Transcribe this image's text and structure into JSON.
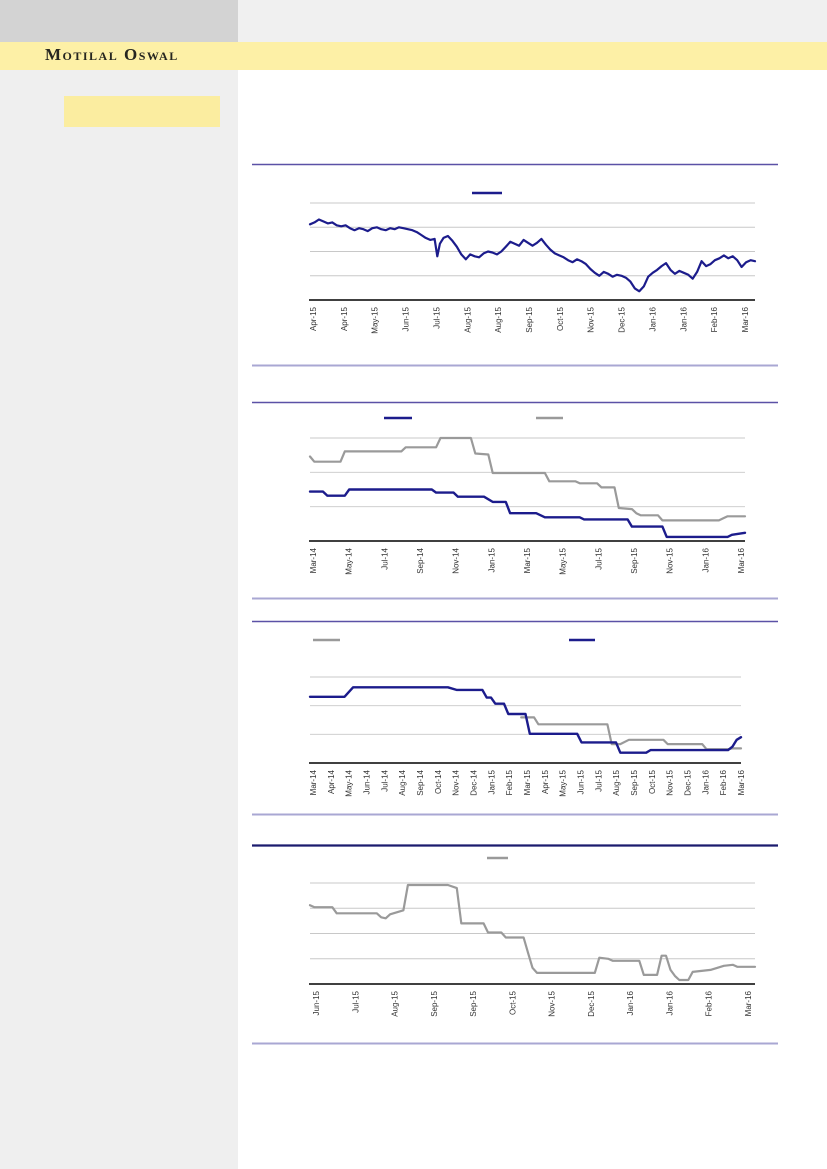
{
  "header": {
    "brand": "Motilal Oswal"
  },
  "colors": {
    "brand_band": "#fdf0a6",
    "topbar_left": "#d3d3d3",
    "topbar_right": "#f0f0f0",
    "sidebar": "#efefef",
    "highlight_box": "#fbeda0",
    "navy": "#1c1c8c",
    "gray": "#9a9a9a",
    "gridline": "#c8c8c8",
    "axis": "#000000",
    "rule_medium": "#5b51a6",
    "rule_light": "#a9a7d3",
    "rule_dark": "#1b1b6e",
    "label_text": "#333333"
  },
  "chart_data": [
    {
      "type": "line",
      "title": "",
      "x_labels": [
        "Apr-15",
        "Apr-15",
        "May-15",
        "Jun-15",
        "Jul-15",
        "Aug-15",
        "Aug-15",
        "Sep-15",
        "Oct-15",
        "Nov-15",
        "Dec-15",
        "Jan-16",
        "Jan-16",
        "Feb-16",
        "Mar-16"
      ],
      "ylim": [
        0,
        100
      ],
      "y_scale": "relative-percent (no y-axis labels visible)",
      "grid": true,
      "legend_position": "top-center",
      "legend": [
        {
          "color_key": "navy"
        }
      ],
      "series": [
        {
          "name": "navy-price-line",
          "color_key": "navy",
          "width": 2.2,
          "points": [
            [
              0,
              78
            ],
            [
              1,
              80
            ],
            [
              2,
              83
            ],
            [
              3,
              81
            ],
            [
              4,
              79
            ],
            [
              5,
              80
            ],
            [
              6,
              77
            ],
            [
              7,
              76
            ],
            [
              8,
              77
            ],
            [
              9,
              74
            ],
            [
              10,
              72
            ],
            [
              11,
              74
            ],
            [
              12,
              73
            ],
            [
              13,
              71
            ],
            [
              14,
              74
            ],
            [
              15,
              75
            ],
            [
              16,
              73
            ],
            [
              17,
              72
            ],
            [
              18,
              74
            ],
            [
              19,
              73
            ],
            [
              20,
              75
            ],
            [
              21,
              74
            ],
            [
              22,
              73
            ],
            [
              23,
              72
            ],
            [
              24,
              70
            ],
            [
              25,
              67
            ],
            [
              26,
              64
            ],
            [
              27,
              62
            ],
            [
              28,
              63
            ],
            [
              28.6,
              45
            ],
            [
              29.2,
              58
            ],
            [
              30,
              64
            ],
            [
              31,
              66
            ],
            [
              32,
              61
            ],
            [
              33,
              55
            ],
            [
              34,
              47
            ],
            [
              35,
              42
            ],
            [
              36,
              47
            ],
            [
              37,
              45
            ],
            [
              38,
              44
            ],
            [
              39,
              48
            ],
            [
              40,
              50
            ],
            [
              41,
              49
            ],
            [
              42,
              47
            ],
            [
              43,
              50
            ],
            [
              44,
              55
            ],
            [
              45,
              60
            ],
            [
              46,
              58
            ],
            [
              47,
              56
            ],
            [
              48,
              62
            ],
            [
              49,
              59
            ],
            [
              50,
              56
            ],
            [
              51,
              59
            ],
            [
              52,
              63
            ],
            [
              53,
              57
            ],
            [
              54,
              52
            ],
            [
              55,
              48
            ],
            [
              56,
              46
            ],
            [
              57,
              44
            ],
            [
              58,
              41
            ],
            [
              59,
              39
            ],
            [
              60,
              42
            ],
            [
              61,
              40
            ],
            [
              62,
              37
            ],
            [
              63,
              32
            ],
            [
              64,
              28
            ],
            [
              65,
              25
            ],
            [
              66,
              29
            ],
            [
              67,
              27
            ],
            [
              68,
              24
            ],
            [
              69,
              26
            ],
            [
              70,
              25
            ],
            [
              71,
              23
            ],
            [
              72,
              19
            ],
            [
              73,
              12
            ],
            [
              74,
              9
            ],
            [
              75,
              14
            ],
            [
              76,
              24
            ],
            [
              77,
              28
            ],
            [
              78,
              31
            ],
            [
              79,
              35
            ],
            [
              80,
              38
            ],
            [
              81,
              31
            ],
            [
              82,
              27
            ],
            [
              83,
              30
            ],
            [
              84,
              28
            ],
            [
              85,
              26
            ],
            [
              86,
              22
            ],
            [
              87,
              29
            ],
            [
              88,
              40
            ],
            [
              89,
              35
            ],
            [
              90,
              37
            ],
            [
              91,
              41
            ],
            [
              92,
              43
            ],
            [
              93,
              46
            ],
            [
              94,
              43
            ],
            [
              95,
              45
            ],
            [
              96,
              41
            ],
            [
              97,
              34
            ],
            [
              98,
              39
            ],
            [
              99,
              41
            ],
            [
              100,
              40
            ]
          ]
        }
      ]
    },
    {
      "type": "line",
      "title": "",
      "x_labels": [
        "Mar-14",
        "May-14",
        "Jul-14",
        "Sep-14",
        "Nov-14",
        "Jan-15",
        "Mar-15",
        "May-15",
        "Jul-15",
        "Sep-15",
        "Nov-15",
        "Jan-16",
        "Mar-16"
      ],
      "ylim": [
        0,
        100
      ],
      "y_scale": "relative-percent (no y-axis labels visible)",
      "grid": true,
      "legend_position": "top",
      "legend": [
        {
          "color_key": "navy"
        },
        {
          "color_key": "gray"
        }
      ],
      "series": [
        {
          "name": "gray-step-line",
          "color_key": "gray",
          "width": 2.2,
          "points": [
            [
              0,
              82
            ],
            [
              1,
              77
            ],
            [
              7,
              77
            ],
            [
              8,
              87
            ],
            [
              21,
              87
            ],
            [
              22,
              91
            ],
            [
              29,
              91
            ],
            [
              30,
              100
            ],
            [
              37,
              100
            ],
            [
              38,
              85
            ],
            [
              41,
              84
            ],
            [
              42,
              66
            ],
            [
              54,
              66
            ],
            [
              55,
              58
            ],
            [
              61,
              58
            ],
            [
              62,
              56
            ],
            [
              66,
              56
            ],
            [
              67,
              52
            ],
            [
              70,
              52
            ],
            [
              71,
              32
            ],
            [
              74,
              31
            ],
            [
              75,
              27
            ],
            [
              76,
              25
            ],
            [
              80,
              25
            ],
            [
              81,
              20
            ],
            [
              94,
              20
            ],
            [
              95,
              22
            ],
            [
              96,
              24
            ],
            [
              100,
              24
            ]
          ]
        },
        {
          "name": "navy-step-line",
          "color_key": "navy",
          "width": 2.4,
          "points": [
            [
              0,
              48
            ],
            [
              3,
              48
            ],
            [
              4,
              44
            ],
            [
              8,
              44
            ],
            [
              9,
              50
            ],
            [
              28,
              50
            ],
            [
              29,
              47
            ],
            [
              33,
              47
            ],
            [
              34,
              43
            ],
            [
              40,
              43
            ],
            [
              42,
              38
            ],
            [
              45,
              38
            ],
            [
              46,
              27
            ],
            [
              52,
              27
            ],
            [
              54,
              23
            ],
            [
              62,
              23
            ],
            [
              63,
              21
            ],
            [
              73,
              21
            ],
            [
              74,
              14
            ],
            [
              81,
              14
            ],
            [
              82,
              4
            ],
            [
              96,
              4
            ],
            [
              97,
              6
            ],
            [
              100,
              8
            ]
          ]
        }
      ]
    },
    {
      "type": "line",
      "title": "",
      "x_labels": [
        "Mar-14",
        "Apr-14",
        "May-14",
        "Jun-14",
        "Jul-14",
        "Aug-14",
        "Sep-14",
        "Oct-14",
        "Nov-14",
        "Dec-14",
        "Jan-15",
        "Feb-15",
        "Mar-15",
        "Apr-15",
        "May-15",
        "Jun-15",
        "Jul-15",
        "Aug-15",
        "Sep-15",
        "Oct-15",
        "Nov-15",
        "Dec-15",
        "Jan-16",
        "Feb-16",
        "Mar-16"
      ],
      "ylim": [
        0,
        100
      ],
      "y_scale": "relative-percent (no y-axis labels visible)",
      "grid": true,
      "legend_position": "top",
      "legend": [
        {
          "color_key": "gray"
        },
        {
          "color_key": "navy"
        }
      ],
      "series": [
        {
          "name": "gray-step-line",
          "color_key": "gray",
          "width": 2.2,
          "points": [
            [
              49,
              53
            ],
            [
              52,
              53
            ],
            [
              53,
              45
            ],
            [
              69,
              45
            ],
            [
              70,
              22
            ],
            [
              72,
              22
            ],
            [
              74,
              27
            ],
            [
              82,
              27
            ],
            [
              83,
              22
            ],
            [
              91,
              22
            ],
            [
              92,
              16
            ],
            [
              97,
              16
            ],
            [
              98,
              17
            ],
            [
              100,
              17
            ]
          ]
        },
        {
          "name": "navy-step-line",
          "color_key": "navy",
          "width": 2.4,
          "points": [
            [
              0,
              77
            ],
            [
              8,
              77
            ],
            [
              10,
              88
            ],
            [
              32,
              88
            ],
            [
              34,
              85
            ],
            [
              40,
              85
            ],
            [
              41,
              76
            ],
            [
              42,
              76
            ],
            [
              43,
              69
            ],
            [
              45,
              69
            ],
            [
              46,
              57
            ],
            [
              50,
              57
            ],
            [
              51,
              34
            ],
            [
              62,
              34
            ],
            [
              63,
              24
            ],
            [
              71,
              24
            ],
            [
              72,
              12
            ],
            [
              78,
              12
            ],
            [
              79,
              15
            ],
            [
              97,
              15
            ],
            [
              98,
              19
            ],
            [
              99,
              27
            ],
            [
              100,
              30
            ]
          ]
        }
      ]
    },
    {
      "type": "line",
      "title": "",
      "x_labels": [
        "Jun-15",
        "Jul-15",
        "Aug-15",
        "Sep-15",
        "Sep-15",
        "Oct-15",
        "Nov-15",
        "Dec-15",
        "Jan-16",
        "Jan-16",
        "Feb-16",
        "Mar-16"
      ],
      "ylim": [
        0,
        100
      ],
      "y_scale": "relative-percent (no y-axis labels visible)",
      "grid": true,
      "legend_position": "top-center",
      "legend": [
        {
          "color_key": "gray"
        }
      ],
      "series": [
        {
          "name": "gray-step-line",
          "color_key": "gray",
          "width": 2.2,
          "points": [
            [
              0,
              78
            ],
            [
              1,
              76
            ],
            [
              5,
              76
            ],
            [
              6,
              70
            ],
            [
              15,
              70
            ],
            [
              16,
              66
            ],
            [
              17,
              65
            ],
            [
              18,
              69
            ],
            [
              21,
              73
            ],
            [
              22,
              98
            ],
            [
              31,
              98
            ],
            [
              33,
              95
            ],
            [
              34,
              60
            ],
            [
              39,
              60
            ],
            [
              40,
              51
            ],
            [
              43,
              51
            ],
            [
              44,
              46
            ],
            [
              48,
              46
            ],
            [
              49,
              31
            ],
            [
              50,
              16
            ],
            [
              51,
              11
            ],
            [
              64,
              11
            ],
            [
              65,
              26
            ],
            [
              67,
              25
            ],
            [
              68,
              23
            ],
            [
              74,
              23
            ],
            [
              75,
              9
            ],
            [
              78,
              9
            ],
            [
              79,
              28
            ],
            [
              80,
              28
            ],
            [
              81,
              14
            ],
            [
              82,
              8
            ],
            [
              83,
              4
            ],
            [
              85,
              4
            ],
            [
              86,
              12
            ],
            [
              90,
              14
            ],
            [
              93,
              18
            ],
            [
              95,
              19
            ],
            [
              96,
              17
            ],
            [
              100,
              17
            ]
          ]
        }
      ]
    }
  ]
}
